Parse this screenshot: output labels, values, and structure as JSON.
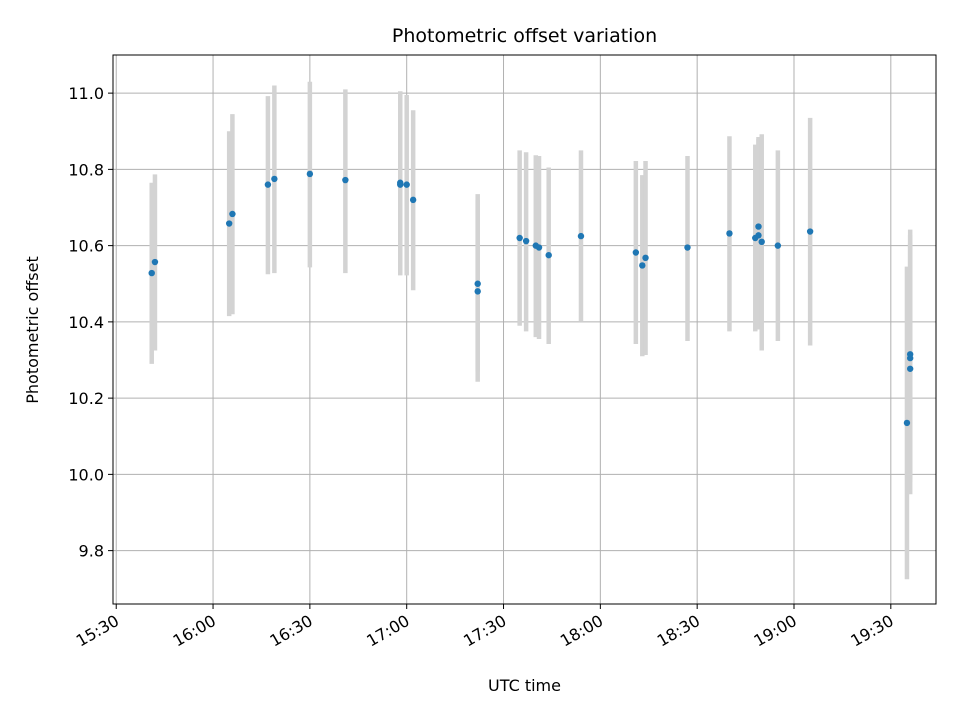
{
  "chart_data": {
    "type": "scatter",
    "title": "Photometric offset variation",
    "xlabel": "UTC time",
    "ylabel": "Photometric offset",
    "x_axis": {
      "type": "time",
      "range": [
        "15:29",
        "19:44"
      ],
      "ticks": [
        "15:30",
        "16:00",
        "16:30",
        "17:00",
        "17:30",
        "18:00",
        "18:30",
        "19:00",
        "19:30"
      ],
      "tick_rotation_deg": 30
    },
    "y_axis": {
      "range": [
        9.66,
        11.1
      ],
      "ticks": [
        9.8,
        10.0,
        10.2,
        10.4,
        10.6,
        10.8,
        11.0
      ],
      "tick_labels": [
        "9.8",
        "10.0",
        "10.2",
        "10.4",
        "10.6",
        "10.8",
        "11.0"
      ]
    },
    "grid": true,
    "series": [
      {
        "marker_color": "#1f77b4",
        "errorbar_color": "#d3d3d3",
        "points": [
          {
            "x": "15:41",
            "y": 10.528,
            "ylow": 10.29,
            "yhigh": 10.765
          },
          {
            "x": "15:42",
            "y": 10.557,
            "ylow": 10.325,
            "yhigh": 10.787
          },
          {
            "x": "16:05",
            "y": 10.658,
            "ylow": 10.415,
            "yhigh": 10.9
          },
          {
            "x": "16:06",
            "y": 10.683,
            "ylow": 10.42,
            "yhigh": 10.945
          },
          {
            "x": "16:17",
            "y": 10.76,
            "ylow": 10.525,
            "yhigh": 10.992
          },
          {
            "x": "16:19",
            "y": 10.775,
            "ylow": 10.528,
            "yhigh": 11.02
          },
          {
            "x": "16:30",
            "y": 10.788,
            "ylow": 10.543,
            "yhigh": 11.03
          },
          {
            "x": "16:41",
            "y": 10.772,
            "ylow": 10.528,
            "yhigh": 11.01
          },
          {
            "x": "16:58",
            "y": 10.765,
            "ylow": 10.522,
            "yhigh": 11.005
          },
          {
            "x": "16:58",
            "y": 10.76,
            "ylow": 10.525,
            "yhigh": 10.998
          },
          {
            "x": "17:00",
            "y": 10.76,
            "ylow": 10.522,
            "yhigh": 10.995
          },
          {
            "x": "17:02",
            "y": 10.72,
            "ylow": 10.483,
            "yhigh": 10.955
          },
          {
            "x": "17:22",
            "y": 10.48,
            "ylow": 10.243,
            "yhigh": 10.72
          },
          {
            "x": "17:22",
            "y": 10.5,
            "ylow": 10.27,
            "yhigh": 10.735
          },
          {
            "x": "17:35",
            "y": 10.62,
            "ylow": 10.39,
            "yhigh": 10.85
          },
          {
            "x": "17:37",
            "y": 10.612,
            "ylow": 10.375,
            "yhigh": 10.845
          },
          {
            "x": "17:40",
            "y": 10.6,
            "ylow": 10.36,
            "yhigh": 10.837
          },
          {
            "x": "17:41",
            "y": 10.595,
            "ylow": 10.355,
            "yhigh": 10.835
          },
          {
            "x": "17:44",
            "y": 10.575,
            "ylow": 10.342,
            "yhigh": 10.805
          },
          {
            "x": "17:54",
            "y": 10.625,
            "ylow": 10.4,
            "yhigh": 10.85
          },
          {
            "x": "18:11",
            "y": 10.582,
            "ylow": 10.342,
            "yhigh": 10.822
          },
          {
            "x": "18:13",
            "y": 10.548,
            "ylow": 10.31,
            "yhigh": 10.785
          },
          {
            "x": "18:14",
            "y": 10.568,
            "ylow": 10.313,
            "yhigh": 10.822
          },
          {
            "x": "18:27",
            "y": 10.595,
            "ylow": 10.35,
            "yhigh": 10.835
          },
          {
            "x": "18:40",
            "y": 10.632,
            "ylow": 10.375,
            "yhigh": 10.887
          },
          {
            "x": "18:48",
            "y": 10.62,
            "ylow": 10.375,
            "yhigh": 10.865
          },
          {
            "x": "18:49",
            "y": 10.65,
            "ylow": 10.39,
            "yhigh": 10.88
          },
          {
            "x": "18:49",
            "y": 10.627,
            "ylow": 10.38,
            "yhigh": 10.885
          },
          {
            "x": "18:50",
            "y": 10.61,
            "ylow": 10.325,
            "yhigh": 10.892
          },
          {
            "x": "18:55",
            "y": 10.6,
            "ylow": 10.35,
            "yhigh": 10.85
          },
          {
            "x": "19:05",
            "y": 10.637,
            "ylow": 10.338,
            "yhigh": 10.935
          },
          {
            "x": "19:35",
            "y": 10.135,
            "ylow": 9.725,
            "yhigh": 10.545
          },
          {
            "x": "19:36",
            "y": 10.305,
            "ylow": 9.98,
            "yhigh": 10.628
          },
          {
            "x": "19:36",
            "y": 10.315,
            "ylow": 9.99,
            "yhigh": 10.642
          },
          {
            "x": "19:36",
            "y": 10.277,
            "ylow": 9.948,
            "yhigh": 10.605
          }
        ]
      }
    ]
  }
}
